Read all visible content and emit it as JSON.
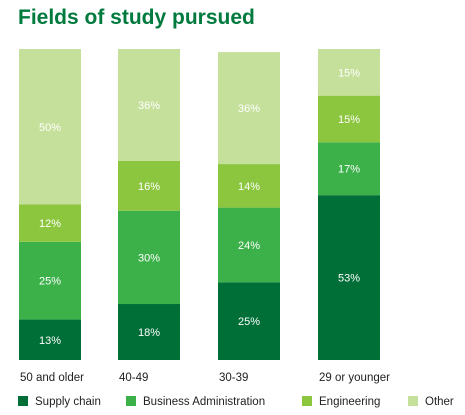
{
  "chart_data": {
    "type": "bar",
    "stacked": true,
    "percent_stacked": true,
    "title": "Fields of study pursued",
    "categories": [
      "50 and older",
      "40-49",
      "30-39",
      "29 or younger"
    ],
    "series": [
      {
        "name": "Supply chain",
        "values": [
          13,
          18,
          25,
          53
        ],
        "color": "#006f37",
        "label_color": "#ffffff"
      },
      {
        "name": "Business Administration",
        "values": [
          25,
          30,
          24,
          17
        ],
        "color": "#3cb14a",
        "label_color": "#ffffff"
      },
      {
        "name": "Engineering",
        "values": [
          12,
          16,
          14,
          15
        ],
        "color": "#8cc63f",
        "label_color": "#ffffff"
      },
      {
        "name": "Other",
        "values": [
          50,
          36,
          36,
          15
        ],
        "color": "#c5e09b",
        "label_color": "#ffffff"
      }
    ],
    "value_suffix": "%",
    "ylim": [
      0,
      100
    ],
    "grid": false,
    "legend_position": "bottom",
    "category_label_color": "#222222",
    "legend_text_color": "#222222"
  }
}
